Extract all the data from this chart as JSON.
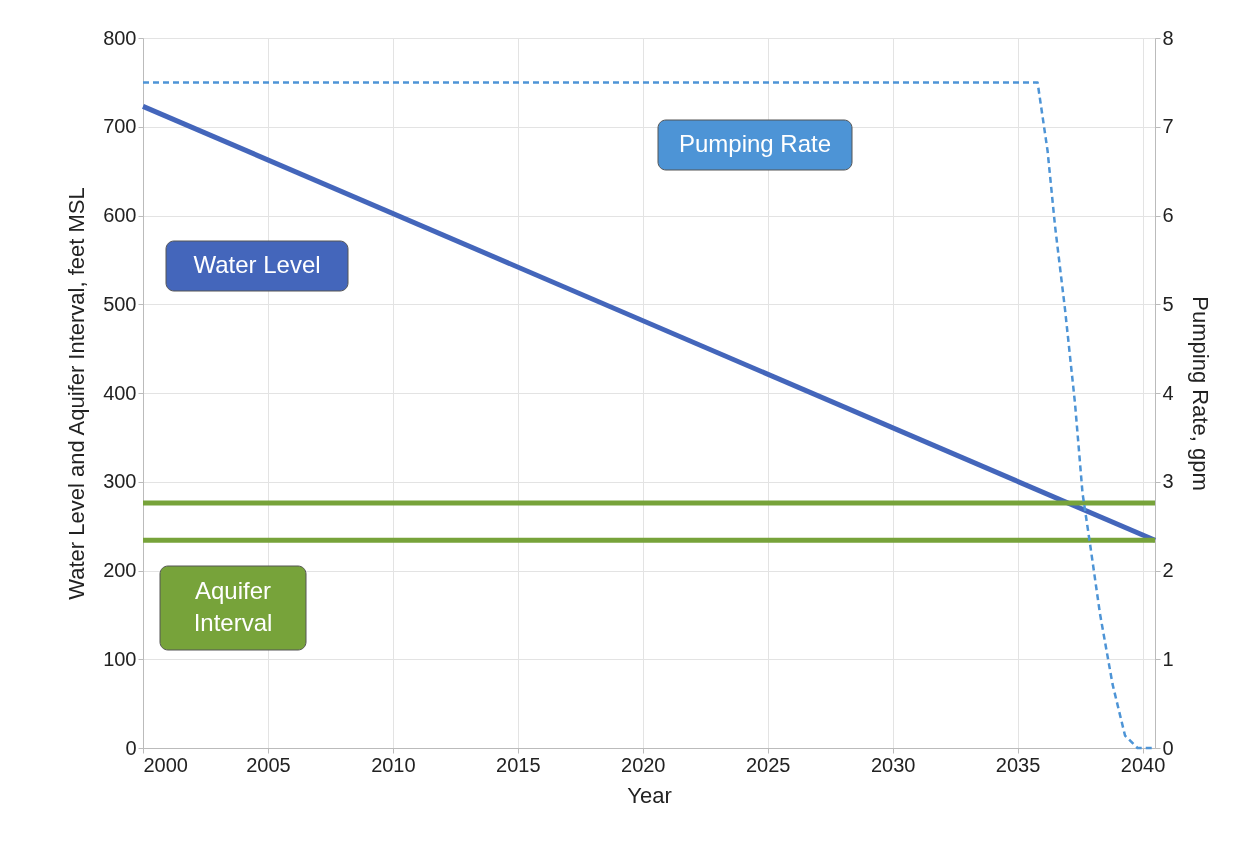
{
  "chart_data": {
    "type": "line",
    "xlabel": "Year",
    "ylabel": "Water Level and Aquifer Interval, feet MSL",
    "y2label": "Pumping Rate, gpm",
    "xlim": [
      2000,
      2040.5
    ],
    "xticks": [
      2000,
      2005,
      2010,
      2015,
      2020,
      2025,
      2030,
      2035,
      2040
    ],
    "ylim": [
      0,
      800
    ],
    "yticks": [
      0,
      100,
      200,
      300,
      400,
      500,
      600,
      700,
      800
    ],
    "y2lim": [
      0,
      8
    ],
    "y2ticks": [
      0,
      1,
      2,
      3,
      4,
      5,
      6,
      7,
      8
    ],
    "grid": true,
    "marker": "none",
    "series": [
      {
        "name": "Water Level",
        "color": "#4466bb",
        "line_style": "solid",
        "x": [
          2000,
          2040.5
        ],
        "values": [
          723,
          234
        ]
      },
      {
        "name": "Pumping Rate",
        "color": "#4d94d6",
        "line_style": "dashed",
        "axis": "y2",
        "x": [
          2000,
          2035.8,
          2036.2,
          2036.5,
          2036.9,
          2037.3,
          2037.6,
          2037.9,
          2038.3,
          2038.8,
          2039.3,
          2039.8,
          2040.4
        ],
        "values": [
          7.5,
          7.5,
          6.73,
          5.88,
          4.94,
          3.88,
          2.87,
          2.3,
          1.51,
          0.72,
          0.14,
          0,
          0
        ]
      },
      {
        "name": "Aquifer Interval",
        "color": "#77a33a",
        "line_style": "solid",
        "x": [
          2000,
          2040.5
        ],
        "values": [
          276,
          276
        ]
      },
      {
        "color": "#77a33a",
        "line_style": "solid",
        "x": [
          2000,
          2040.5
        ],
        "values": [
          234,
          234
        ]
      }
    ]
  }
}
